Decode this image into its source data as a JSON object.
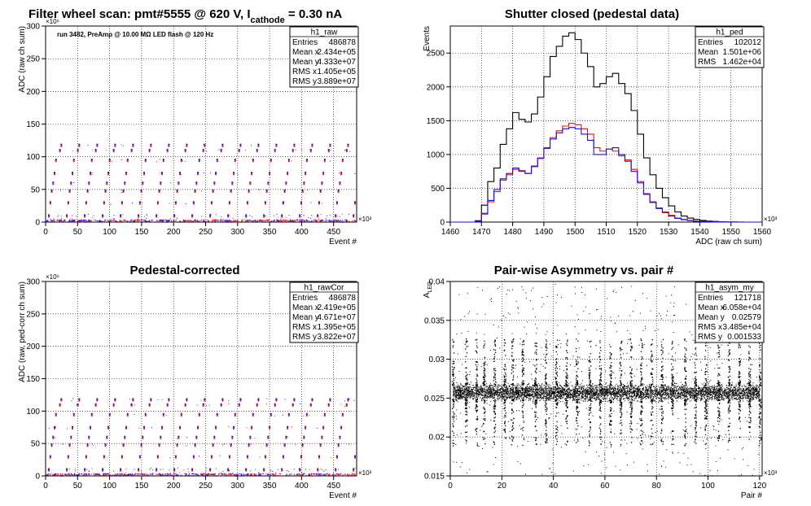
{
  "colors": {
    "series_black": "#000000",
    "series_red": "#e8100f",
    "series_blue": "#1a0fd6",
    "grid": "#000000"
  },
  "chart_data": [
    {
      "id": "raw",
      "type": "scatter",
      "title": "Filter wheel scan: pmt#5555 @   620 V, I",
      "title_sub": "cathode",
      "title_tail": " = 0.30 nA",
      "note": "run 3482, PreAmp @ 10.00 MΩ LED flash @  120 Hz",
      "xlabel": "Event #",
      "ylabel": "ADC (raw ch sum)",
      "x_exponent": "×10³",
      "y_exponent": "×10⁶",
      "xlim": [
        0,
        486
      ],
      "ylim": [
        0,
        300
      ],
      "xticks": [
        "0",
        "50",
        "100",
        "150",
        "200",
        "250",
        "300",
        "350",
        "400",
        "450"
      ],
      "yticks": [
        "0",
        "50",
        "100",
        "150",
        "200",
        "250",
        "300"
      ],
      "grid": true,
      "levels": [
        0,
        10,
        30,
        48,
        60,
        75,
        95,
        110,
        118
      ],
      "series_names": [
        "red",
        "blue"
      ],
      "stats": {
        "name": "h1_raw",
        "rows": [
          [
            "Entries",
            "486878"
          ],
          [
            "Mean x",
            "2.434e+05"
          ],
          [
            "Mean y",
            "4.333e+07"
          ],
          [
            "RMS x",
            "1.405e+05"
          ],
          [
            "RMS y",
            "3.889e+07"
          ]
        ]
      }
    },
    {
      "id": "ped",
      "type": "line",
      "title": "Shutter closed (pedestal data)",
      "xlabel": "ADC (raw ch sum)",
      "ylabel": "Events",
      "x_exponent": "×10³",
      "xlim": [
        1460,
        1560
      ],
      "ylim": [
        0,
        2900
      ],
      "xticks": [
        "1460",
        "1470",
        "1480",
        "1490",
        "1500",
        "1510",
        "1520",
        "1530",
        "1540",
        "1550",
        "1560"
      ],
      "yticks": [
        "0",
        "500",
        "1000",
        "1500",
        "2000",
        "2500"
      ],
      "grid": true,
      "x": [
        1460,
        1462,
        1464,
        1466,
        1468,
        1470,
        1472,
        1474,
        1476,
        1478,
        1480,
        1482,
        1484,
        1486,
        1488,
        1490,
        1492,
        1494,
        1496,
        1498,
        1500,
        1502,
        1504,
        1506,
        1508,
        1510,
        1512,
        1514,
        1516,
        1518,
        1520,
        1522,
        1524,
        1526,
        1528,
        1530,
        1532,
        1534,
        1536,
        1538,
        1540,
        1542,
        1544,
        1546,
        1548,
        1550,
        1552,
        1554,
        1556,
        1558
      ],
      "series": [
        {
          "color": "black",
          "values": [
            0,
            0,
            0,
            0,
            20,
            250,
            600,
            800,
            1150,
            1380,
            1620,
            1520,
            1480,
            1600,
            1850,
            2150,
            2450,
            2600,
            2750,
            2800,
            2700,
            2500,
            2300,
            2000,
            2050,
            2150,
            2200,
            2050,
            1900,
            1650,
            1300,
            950,
            700,
            500,
            360,
            240,
            150,
            90,
            60,
            40,
            25,
            15,
            10,
            5,
            3,
            2,
            1,
            0,
            0,
            0
          ]
        },
        {
          "color": "red",
          "values": [
            0,
            0,
            0,
            0,
            10,
            130,
            300,
            450,
            620,
            700,
            780,
            750,
            720,
            830,
            950,
            1100,
            1250,
            1350,
            1420,
            1460,
            1440,
            1380,
            1300,
            1100,
            1050,
            1080,
            1050,
            980,
            920,
            780,
            600,
            420,
            300,
            210,
            150,
            100,
            60,
            40,
            25,
            15,
            10,
            6,
            3,
            2,
            1,
            0,
            0,
            0,
            0,
            0
          ]
        },
        {
          "color": "blue",
          "values": [
            0,
            0,
            0,
            0,
            10,
            120,
            320,
            480,
            640,
            720,
            800,
            760,
            720,
            820,
            940,
            1090,
            1230,
            1320,
            1380,
            1400,
            1380,
            1300,
            1210,
            1000,
            1000,
            1080,
            1100,
            1000,
            900,
            750,
            580,
            410,
            290,
            200,
            140,
            90,
            55,
            35,
            22,
            12,
            8,
            5,
            3,
            2,
            1,
            0,
            0,
            0,
            0,
            0
          ]
        }
      ],
      "stats": {
        "name": "h1_ped",
        "rows": [
          [
            "Entries",
            "102012"
          ],
          [
            "Mean",
            "1.501e+06"
          ],
          [
            "RMS",
            "1.462e+04"
          ]
        ]
      }
    },
    {
      "id": "rawcor",
      "type": "scatter",
      "title": "Pedestal-corrected",
      "xlabel": "Event #",
      "ylabel": "ADC (raw, ped-corr ch sum)",
      "x_exponent": "×10³",
      "y_exponent": "×10⁶",
      "xlim": [
        0,
        486
      ],
      "ylim": [
        0,
        300
      ],
      "xticks": [
        "0",
        "50",
        "100",
        "150",
        "200",
        "250",
        "300",
        "350",
        "400",
        "450"
      ],
      "yticks": [
        "0",
        "50",
        "100",
        "150",
        "200",
        "250",
        "300"
      ],
      "grid": true,
      "levels": [
        0,
        10,
        30,
        48,
        60,
        75,
        95,
        110,
        118
      ],
      "stats": {
        "name": "h1_rawCor",
        "rows": [
          [
            "Entries",
            "486878"
          ],
          [
            "Mean x",
            "2.419e+05"
          ],
          [
            "Mean y",
            "4.671e+07"
          ],
          [
            "RMS x",
            "1.395e+05"
          ],
          [
            "RMS y",
            "3.822e+07"
          ]
        ]
      }
    },
    {
      "id": "asym",
      "type": "scatter",
      "title": "Pair-wise Asymmetry vs. pair #",
      "xlabel": "Pair #",
      "ylabel": "A",
      "ylabel_sub": "LED",
      "x_exponent": "×10³",
      "xlim": [
        0,
        121
      ],
      "ylim": [
        0.015,
        0.04
      ],
      "xticks": [
        "0",
        "20",
        "40",
        "60",
        "80",
        "100",
        "120"
      ],
      "yticks": [
        "0.015",
        "0.02",
        "0.025",
        "0.03",
        "0.035",
        "0.04"
      ],
      "grid": true,
      "band_center": 0.02579,
      "band_halfwidth": 0.0009,
      "spike_x": [
        1,
        6,
        10,
        13,
        17,
        21,
        24,
        28,
        33,
        37,
        41,
        45,
        49,
        54,
        58,
        62,
        66,
        70,
        74,
        78,
        82,
        86,
        91,
        95,
        99,
        104,
        108,
        112,
        116,
        120
      ],
      "stats": {
        "name": "h1_asym_my",
        "rows": [
          [
            "Entries",
            "121718"
          ],
          [
            "Mean x",
            "6.058e+04"
          ],
          [
            "Mean y",
            "0.02579"
          ],
          [
            "RMS x",
            "3.485e+04"
          ],
          [
            "RMS y",
            "0.001533"
          ]
        ]
      }
    }
  ]
}
